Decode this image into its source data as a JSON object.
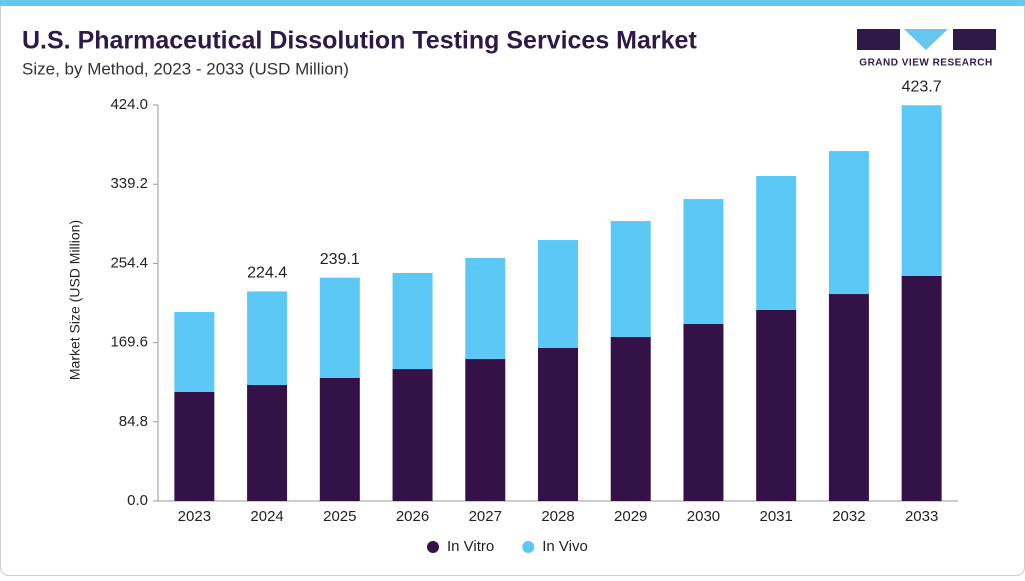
{
  "chart_data": {
    "type": "stacked_bar",
    "title": "U.S. Pharmaceutical Dissolution Testing Services Market",
    "subtitle": "Size, by Method, 2023 - 2033 (USD Million)",
    "y_label": "Market Size (USD Million)",
    "brand": "GRAND VIEW RESEARCH",
    "categories": [
      "2023",
      "2024",
      "2025",
      "2026",
      "2027",
      "2028",
      "2029",
      "2030",
      "2031",
      "2032",
      "2033"
    ],
    "series": [
      {
        "name": "In Vitro",
        "color": "#341146",
        "values": [
          116.7,
          124.2,
          131.7,
          141.3,
          152.0,
          163.8,
          175.6,
          189.5,
          204.5,
          221.6,
          240.9
        ]
      },
      {
        "name": "In Vivo",
        "color": "#5bc8f5",
        "values": [
          85.7,
          100.2,
          107.4,
          102.8,
          108.2,
          115.6,
          124.2,
          133.8,
          143.5,
          153.1,
          182.8
        ]
      }
    ],
    "totals": [
      null,
      224.4,
      239.1,
      null,
      null,
      null,
      null,
      null,
      null,
      null,
      423.7
    ],
    "ylim": [
      0,
      424
    ],
    "yticks": [
      {
        "value": 0,
        "label": "0.0"
      },
      84.8,
      169.6,
      254.4,
      339.2,
      {
        "value": 424,
        "label": "424.0"
      }
    ],
    "grid": false,
    "legend": "bottom"
  }
}
